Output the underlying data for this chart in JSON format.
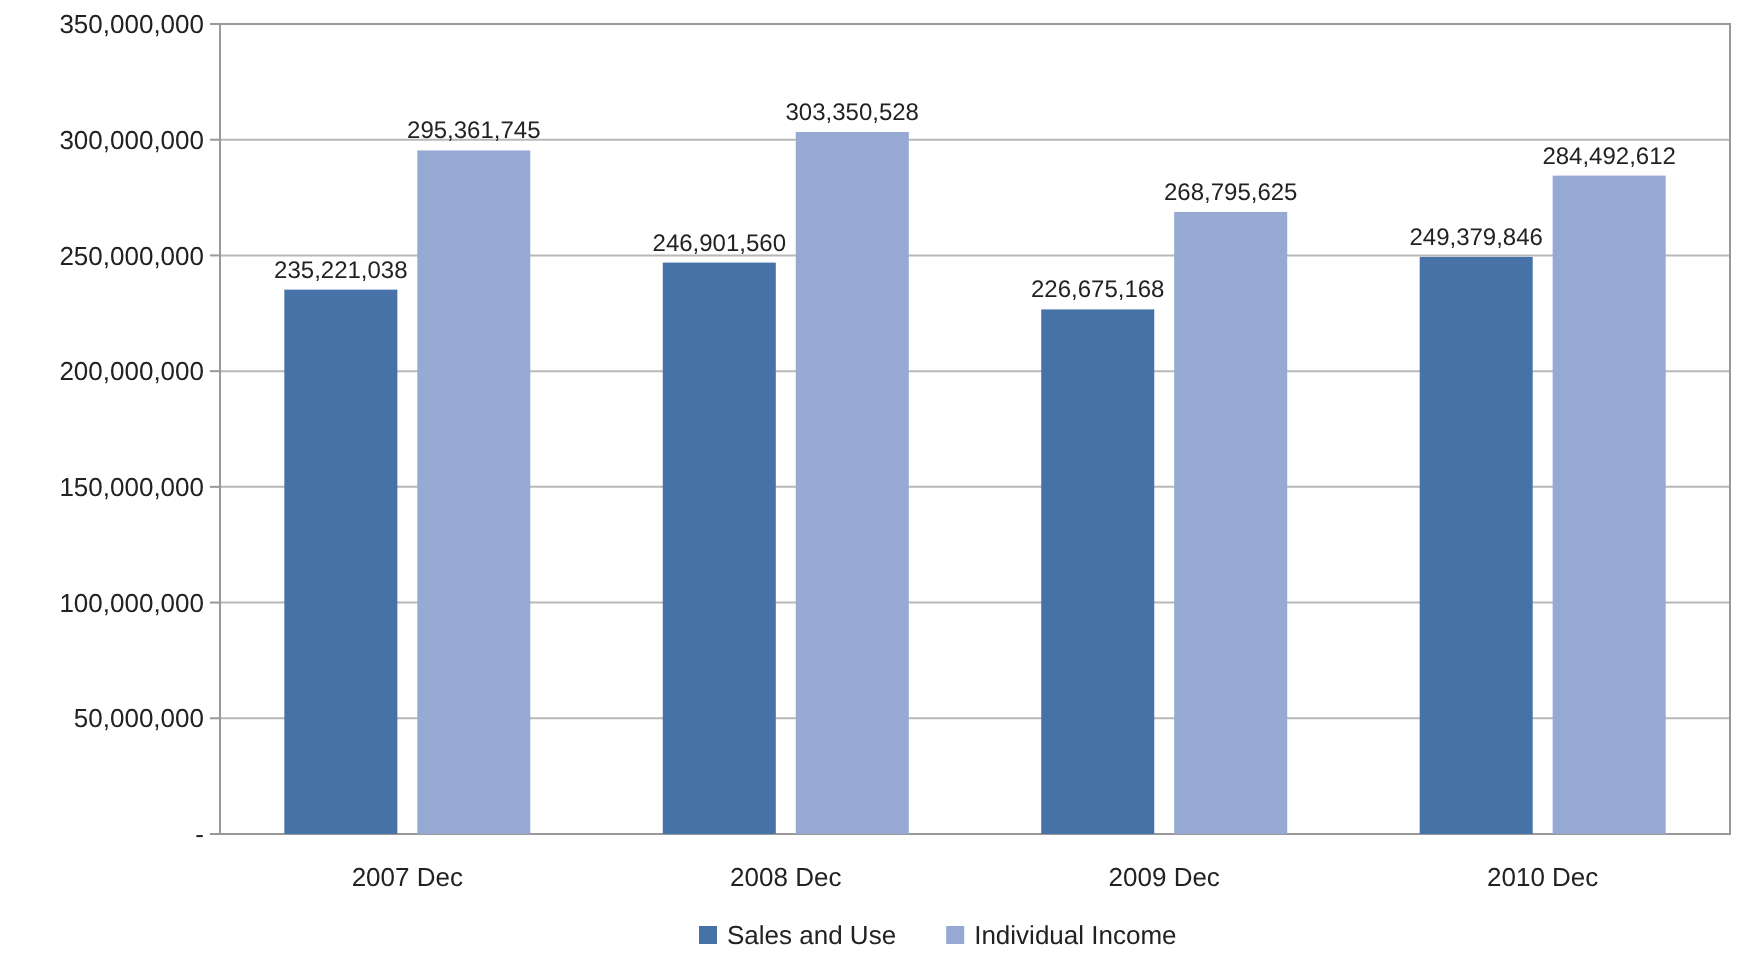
{
  "chart_data": {
    "type": "bar",
    "categories": [
      "2007 Dec",
      "2008 Dec",
      "2009 Dec",
      "2010 Dec"
    ],
    "series": [
      {
        "name": "Sales and Use",
        "color": "#4672a8",
        "values": [
          235221038,
          246901560,
          226675168,
          249379846
        ],
        "value_labels": [
          "235,221,038",
          "246,901,560",
          "226,675,168",
          "249,379,846"
        ]
      },
      {
        "name": "Individual Income",
        "color": "#95a9d3",
        "values": [
          295361745,
          303350528,
          268795625,
          284492612
        ],
        "value_labels": [
          "295,361,745",
          "303,350,528",
          "268,795,625",
          "284,492,612"
        ]
      }
    ],
    "ylim": [
      0,
      350000000
    ],
    "yticks": [
      {
        "value": 0,
        "label": "-"
      },
      {
        "value": 50000000,
        "label": "50,000,000"
      },
      {
        "value": 100000000,
        "label": "100,000,000"
      },
      {
        "value": 150000000,
        "label": "150,000,000"
      },
      {
        "value": 200000000,
        "label": "200,000,000"
      },
      {
        "value": 250000000,
        "label": "250,000,000"
      },
      {
        "value": 300000000,
        "label": "300,000,000"
      },
      {
        "value": 350000000,
        "label": "350,000,000"
      }
    ],
    "grid": "y",
    "legend": "bottom"
  }
}
